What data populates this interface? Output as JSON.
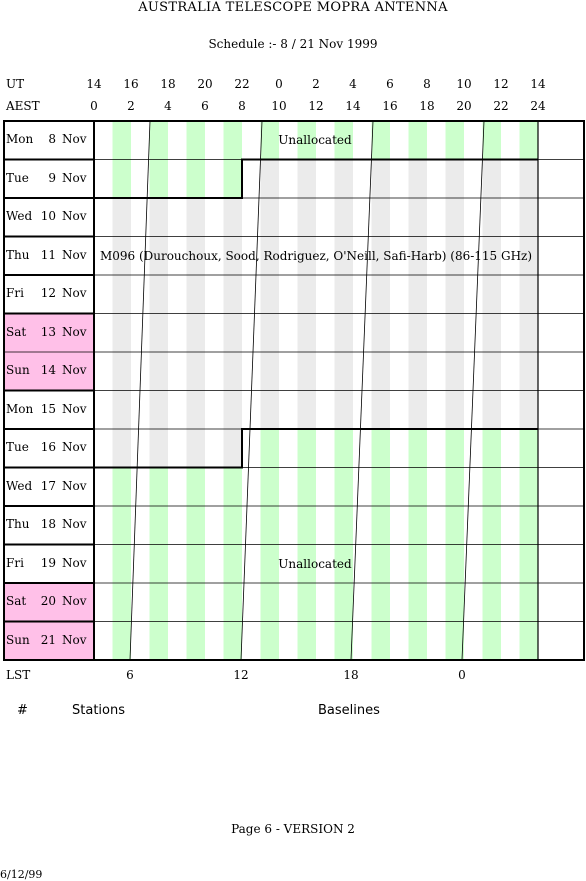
{
  "title": "AUSTRALIA TELESCOPE MOPRA ANTENNA",
  "subtitle": "Schedule :- 8 / 21 Nov 1999",
  "ut_label": "UT",
  "aest_label": "AEST",
  "lst_label": "LST",
  "ut_ticks": [
    "14",
    "16",
    "18",
    "20",
    "22",
    "0",
    "2",
    "4",
    "6",
    "8",
    "10",
    "12",
    "14"
  ],
  "aest_ticks": [
    "0",
    "2",
    "4",
    "6",
    "8",
    "10",
    "12",
    "14",
    "16",
    "18",
    "20",
    "22",
    "24"
  ],
  "lst_ticks": [
    "6",
    "12",
    "18",
    "0"
  ],
  "days": [
    {
      "name": "Mon",
      "num": "8",
      "month": "Nov",
      "weekend": false
    },
    {
      "name": "Tue",
      "num": "9",
      "month": "Nov",
      "weekend": false
    },
    {
      "name": "Wed",
      "num": "10",
      "month": "Nov",
      "weekend": false
    },
    {
      "name": "Thu",
      "num": "11",
      "month": "Nov",
      "weekend": false
    },
    {
      "name": "Fri",
      "num": "12",
      "month": "Nov",
      "weekend": false
    },
    {
      "name": "Sat",
      "num": "13",
      "month": "Nov",
      "weekend": true
    },
    {
      "name": "Sun",
      "num": "14",
      "month": "Nov",
      "weekend": true
    },
    {
      "name": "Mon",
      "num": "15",
      "month": "Nov",
      "weekend": false
    },
    {
      "name": "Tue",
      "num": "16",
      "month": "Nov",
      "weekend": false
    },
    {
      "name": "Wed",
      "num": "17",
      "month": "Nov",
      "weekend": false
    },
    {
      "name": "Thu",
      "num": "18",
      "month": "Nov",
      "weekend": false
    },
    {
      "name": "Fri",
      "num": "19",
      "month": "Nov",
      "weekend": false
    },
    {
      "name": "Sat",
      "num": "20",
      "month": "Nov",
      "weekend": true
    },
    {
      "name": "Sun",
      "num": "21",
      "month": "Nov",
      "weekend": true
    }
  ],
  "labels": {
    "unallocated_top": "Unallocated",
    "project": "M096 (Durouchoux, Sood, Rodriguez, O'Neill, Safi-Harb) (86-115 GHz)",
    "unallocated_bottom": "Unallocated"
  },
  "footer": {
    "hash": "#",
    "stations": "Stations",
    "baselines": "Baselines",
    "page": "Page 6 - VERSION 2",
    "date": "6/12/99"
  },
  "colors": {
    "green": "#ccffcc",
    "grey": "#ebebeb",
    "weekend": "#ffc0e8"
  }
}
